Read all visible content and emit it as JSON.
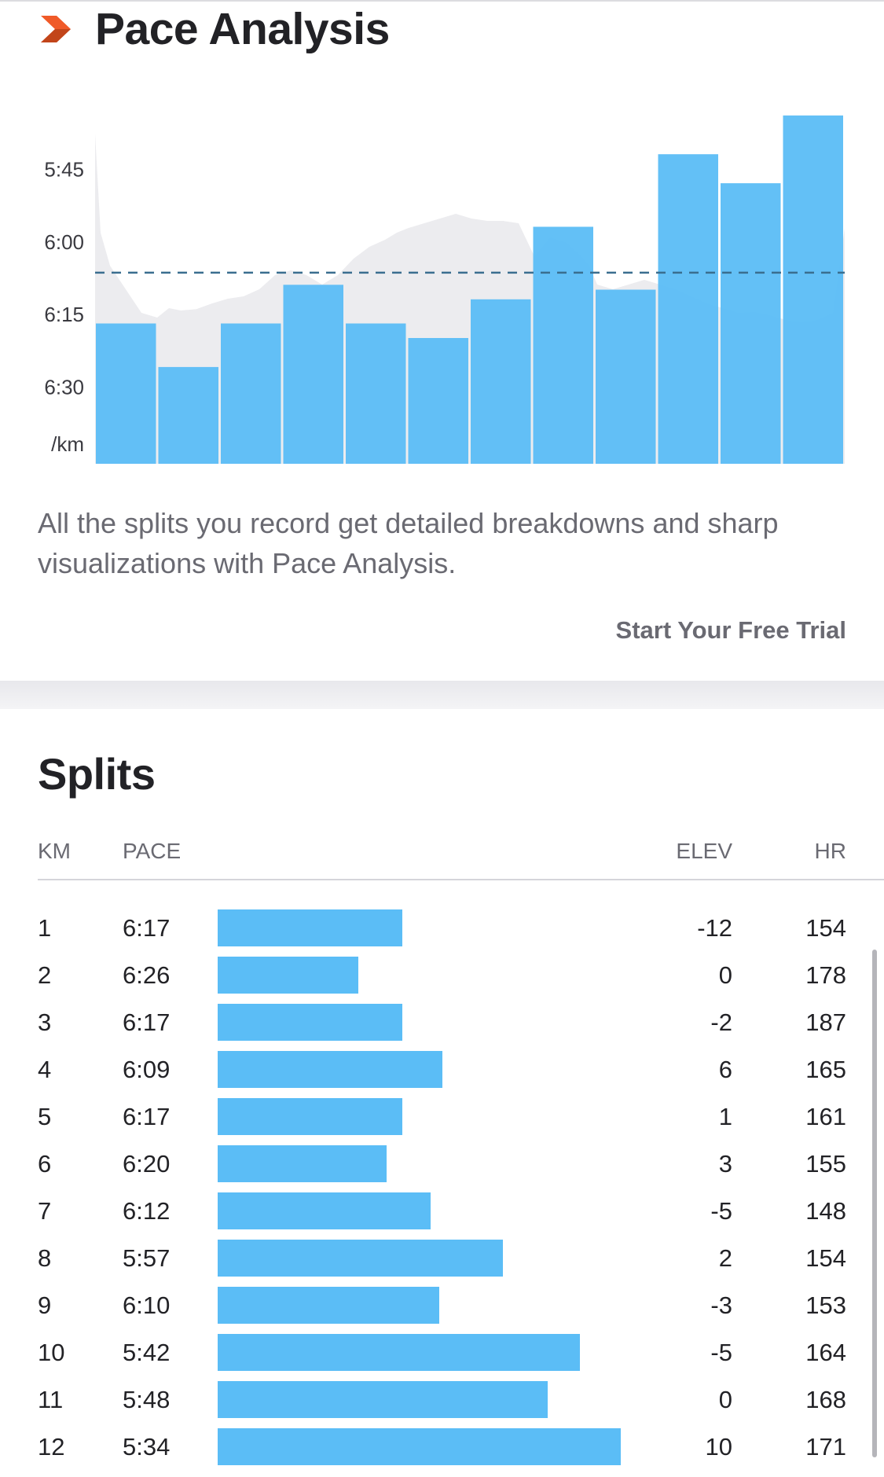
{
  "header": {
    "title": "Pace Analysis",
    "icon": "chevron-right-icon",
    "icon_colors": [
      "#f05a28",
      "#c2451a"
    ]
  },
  "chart_data": {
    "type": "bar",
    "y_axis_unit": "/km",
    "y_ticks": [
      "5:45",
      "6:00",
      "6:15",
      "6:30"
    ],
    "y_tick_seconds": [
      345,
      360,
      375,
      390
    ],
    "ylim_seconds": [
      328,
      406
    ],
    "y_inverted": true,
    "average_pace_seconds": 366.5,
    "categories": [
      "1",
      "2",
      "3",
      "4",
      "5",
      "6",
      "7",
      "8",
      "9",
      "10",
      "11",
      "12"
    ],
    "values_seconds": [
      377,
      386,
      377,
      369,
      377,
      380,
      372,
      357,
      370,
      342,
      348,
      334
    ],
    "values": [
      "6:17",
      "6:26",
      "6:17",
      "6:09",
      "6:17",
      "6:20",
      "6:12",
      "5:57",
      "6:10",
      "5:42",
      "5:48",
      "5:34"
    ],
    "bar_color": "#5bbdf6",
    "elevation_fill_color": "#ececef",
    "average_line_color": "#3a6e8f",
    "grid": false
  },
  "description": "All the splits you record get detailed breakdowns and sharp visualizations with Pace Analysis.",
  "cta_label": "Start Your Free Trial",
  "splits": {
    "title": "Splits",
    "columns": {
      "km": "KM",
      "pace": "PACE",
      "elev": "ELEV",
      "hr": "HR"
    },
    "bar_color": "#5bbdf6",
    "rows": [
      {
        "km": "1",
        "pace": "6:17",
        "elev": "-12",
        "hr": "154",
        "speed_fraction": 0.459
      },
      {
        "km": "2",
        "pace": "6:26",
        "elev": "0",
        "hr": "178",
        "speed_fraction": 0.349
      },
      {
        "km": "3",
        "pace": "6:17",
        "elev": "-2",
        "hr": "187",
        "speed_fraction": 0.459
      },
      {
        "km": "4",
        "pace": "6:09",
        "elev": "6",
        "hr": "165",
        "speed_fraction": 0.558
      },
      {
        "km": "5",
        "pace": "6:17",
        "elev": "1",
        "hr": "161",
        "speed_fraction": 0.459
      },
      {
        "km": "6",
        "pace": "6:20",
        "elev": "3",
        "hr": "155",
        "speed_fraction": 0.419
      },
      {
        "km": "7",
        "pace": "6:12",
        "elev": "-5",
        "hr": "148",
        "speed_fraction": 0.528
      },
      {
        "km": "8",
        "pace": "5:57",
        "elev": "2",
        "hr": "154",
        "speed_fraction": 0.707
      },
      {
        "km": "9",
        "pace": "6:10",
        "elev": "-3",
        "hr": "153",
        "speed_fraction": 0.549
      },
      {
        "km": "10",
        "pace": "5:42",
        "elev": "-5",
        "hr": "164",
        "speed_fraction": 0.898
      },
      {
        "km": "11",
        "pace": "5:48",
        "elev": "0",
        "hr": "168",
        "speed_fraction": 0.819
      },
      {
        "km": "12",
        "pace": "5:34",
        "elev": "10",
        "hr": "171",
        "speed_fraction": 1.0
      }
    ]
  }
}
